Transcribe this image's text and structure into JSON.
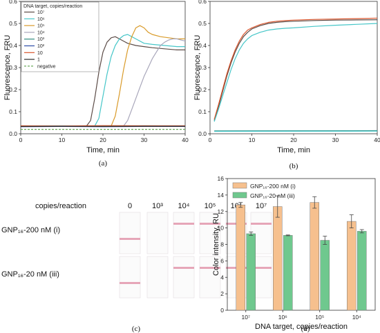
{
  "chart_data": [
    {
      "type": "line",
      "panel_label": "(a)",
      "xlabel": "Time, min",
      "ylabel": "Fluorescence, FRU",
      "xlim": [
        0,
        40
      ],
      "ylim": [
        0,
        0.6
      ],
      "xticks": [
        "0",
        "10",
        "20",
        "30",
        "40"
      ],
      "yticks": [
        "0.0",
        "0.1",
        "0.2",
        "0.3",
        "0.4",
        "0.5",
        "0.6"
      ],
      "legend_title": "DNA target, copies/reaction",
      "legend_position": "top-left",
      "series": [
        {
          "name": "10⁷",
          "color": "#5a4a45",
          "x": [
            0,
            16,
            17,
            18,
            19,
            20,
            21,
            22,
            23,
            24,
            25,
            26,
            28,
            30,
            32,
            35,
            38,
            40
          ],
          "y": [
            0.035,
            0.035,
            0.06,
            0.16,
            0.28,
            0.37,
            0.415,
            0.435,
            0.44,
            0.43,
            0.42,
            0.41,
            0.4,
            0.395,
            0.39,
            0.385,
            0.38,
            0.38
          ]
        },
        {
          "name": "10⁶",
          "color": "#45c6c8",
          "x": [
            0,
            18,
            19,
            20,
            21,
            22,
            23,
            24,
            25,
            26,
            27,
            28,
            30,
            32,
            35,
            38,
            40
          ],
          "y": [
            0.035,
            0.035,
            0.07,
            0.17,
            0.27,
            0.35,
            0.4,
            0.43,
            0.445,
            0.45,
            0.44,
            0.43,
            0.41,
            0.405,
            0.4,
            0.395,
            0.395
          ]
        },
        {
          "name": "10⁵",
          "color": "#d99a28",
          "x": [
            0,
            22,
            23,
            24,
            25,
            26,
            27,
            28,
            29,
            30,
            31,
            32,
            34,
            36,
            38,
            40
          ],
          "y": [
            0.035,
            0.035,
            0.08,
            0.18,
            0.29,
            0.38,
            0.44,
            0.48,
            0.49,
            0.48,
            0.46,
            0.45,
            0.44,
            0.435,
            0.43,
            0.43
          ]
        },
        {
          "name": "10⁴",
          "color": "#a8a6ba",
          "x": [
            0,
            25,
            26,
            27,
            28,
            29,
            30,
            31,
            32,
            33,
            34,
            35,
            36,
            37,
            38,
            39,
            40
          ],
          "y": [
            0.035,
            0.035,
            0.06,
            0.11,
            0.16,
            0.21,
            0.26,
            0.3,
            0.34,
            0.37,
            0.4,
            0.415,
            0.425,
            0.43,
            0.43,
            0.425,
            0.42
          ]
        },
        {
          "name": "10³",
          "color": "#2f8a7e",
          "x": [
            0,
            10,
            20,
            30,
            40
          ],
          "y": [
            0.034,
            0.035,
            0.033,
            0.036,
            0.035
          ]
        },
        {
          "name": "10²",
          "color": "#2a4aa8",
          "x": [
            0,
            10,
            20,
            30,
            40
          ],
          "y": [
            0.032,
            0.033,
            0.032,
            0.033,
            0.033
          ]
        },
        {
          "name": "10",
          "color": "#d9532a",
          "x": [
            0,
            10,
            20,
            30,
            40
          ],
          "y": [
            0.036,
            0.035,
            0.037,
            0.036,
            0.036
          ]
        },
        {
          "name": "1",
          "color": "#2c2c2c",
          "x": [
            0,
            10,
            20,
            30,
            40
          ],
          "y": [
            0.033,
            0.034,
            0.033,
            0.034,
            0.034
          ]
        },
        {
          "name": "negative",
          "color": "#6aa85a",
          "dashed": true,
          "x": [
            0,
            40
          ],
          "y": [
            0.02,
            0.02
          ]
        }
      ]
    },
    {
      "type": "line",
      "panel_label": "(b)",
      "xlabel": "Time, min",
      "ylabel": "Fluorescence, FRU",
      "xlim": [
        0,
        40
      ],
      "ylim": [
        0,
        0.6
      ],
      "xticks": [
        "0",
        "10",
        "20",
        "30",
        "40"
      ],
      "yticks": [
        "0.0",
        "0.1",
        "0.2",
        "0.3",
        "0.4",
        "0.5",
        "0.6"
      ],
      "series": [
        {
          "color": "#5a4a45",
          "x": [
            1,
            2,
            3,
            4,
            5,
            6,
            7,
            8,
            9,
            10,
            12,
            14,
            16,
            18,
            20,
            25,
            30,
            35,
            40
          ],
          "y": [
            0.06,
            0.12,
            0.19,
            0.26,
            0.32,
            0.37,
            0.41,
            0.44,
            0.46,
            0.475,
            0.49,
            0.5,
            0.505,
            0.508,
            0.51,
            0.513,
            0.515,
            0.516,
            0.517
          ]
        },
        {
          "color": "#d9532a",
          "x": [
            1,
            2,
            3,
            4,
            5,
            6,
            7,
            8,
            9,
            10,
            12,
            14,
            16,
            18,
            20,
            25,
            30,
            35,
            40
          ],
          "y": [
            0.065,
            0.13,
            0.2,
            0.27,
            0.33,
            0.38,
            0.42,
            0.45,
            0.47,
            0.48,
            0.495,
            0.505,
            0.51,
            0.513,
            0.515,
            0.518,
            0.52,
            0.522,
            0.524
          ]
        },
        {
          "color": "#45c6c8",
          "x": [
            1,
            2,
            3,
            4,
            5,
            6,
            7,
            8,
            9,
            10,
            12,
            14,
            16,
            18,
            20,
            25,
            30,
            35,
            40
          ],
          "y": [
            0.055,
            0.11,
            0.17,
            0.23,
            0.29,
            0.34,
            0.38,
            0.41,
            0.43,
            0.445,
            0.46,
            0.47,
            0.475,
            0.478,
            0.48,
            0.487,
            0.492,
            0.496,
            0.5
          ]
        },
        {
          "color": "#2f8a7e",
          "x": [
            1,
            40
          ],
          "y": [
            0.013,
            0.014
          ]
        },
        {
          "color": "#45c6c8",
          "x": [
            1,
            40
          ],
          "y": [
            0.011,
            0.012
          ]
        }
      ]
    },
    {
      "type": "bar",
      "panel_label": "(d)",
      "xlabel": "DNA target, copies/reaction",
      "ylabel": "Color intensity, RU",
      "categories": [
        "10⁷",
        "10⁶",
        "10⁵",
        "10⁴"
      ],
      "ylim": [
        0,
        16
      ],
      "yticks": [
        "0",
        "2",
        "4",
        "6",
        "8",
        "10",
        "12",
        "14",
        "16"
      ],
      "legend_position": "top-left",
      "series": [
        {
          "name": "GNP₁₆-200 nM (i)",
          "color": "#f6c08e",
          "values": [
            12.8,
            12.6,
            13.1,
            10.8
          ],
          "errors": [
            0.3,
            1.3,
            0.7,
            0.8
          ]
        },
        {
          "name": "GNP₁₆-20 nM (iii)",
          "color": "#6fc88e",
          "values": [
            9.3,
            9.1,
            8.5,
            9.6
          ],
          "errors": [
            0.2,
            0.05,
            0.5,
            0.2
          ]
        }
      ]
    }
  ],
  "panel_c": {
    "panel_label": "(c)",
    "header": "copies/reaction",
    "columns": [
      "0",
      "10³",
      "10⁴",
      "10⁵",
      "10⁶",
      "10⁷"
    ],
    "rows": [
      {
        "label": "GNP₁₆-200 nM (i)",
        "bands": [
          "low",
          "none",
          "high",
          "high",
          "high",
          "high"
        ]
      },
      {
        "label": "GNP₁₆-20 nM (iii)",
        "bands": [
          "low",
          "none",
          "high",
          "high",
          "high",
          "high"
        ]
      }
    ]
  }
}
